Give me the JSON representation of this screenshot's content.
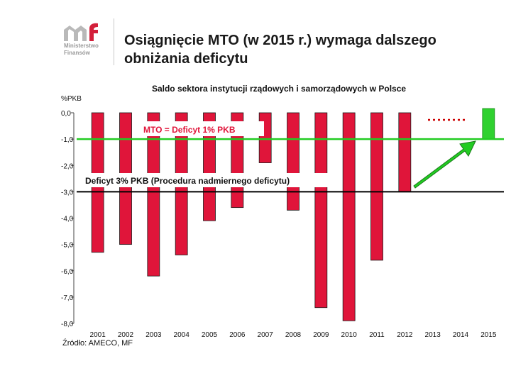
{
  "header": {
    "title_line1": "Osiągnięcie MTO (w 2015 r.) wymaga dalszego",
    "title_line2": "obniżania deficytu",
    "logo_line1": "Ministerstwo",
    "logo_line2": "Finansów",
    "logo_text": "mf"
  },
  "source": "Źródło: AMECO, MF",
  "colors": {
    "bar": "#e0153a",
    "bar_2015": "#2fd12f",
    "mto_line": "#22cc22",
    "deficit_line": "#000000",
    "arrow": "#22cc22",
    "dotted": "#cc0000"
  },
  "chart_data": {
    "type": "bar",
    "title": "Saldo sektora instytucji rządowych i samorządowych w Polsce",
    "ylabel": "%PKB",
    "ylim": [
      -8.0,
      0.0
    ],
    "yticks": [
      "0,0",
      "-1,0",
      "-2,0",
      "-3,0",
      "-4,0",
      "-5,0",
      "-6,0",
      "-7,0",
      "-8,0"
    ],
    "categories": [
      "2001",
      "2002",
      "2003",
      "2004",
      "2005",
      "2006",
      "2007",
      "2008",
      "2009",
      "2010",
      "2011",
      "2012",
      "2013",
      "2014",
      "2015"
    ],
    "values": [
      -5.3,
      -5.0,
      -6.2,
      -5.4,
      -4.1,
      -3.6,
      -1.9,
      -3.7,
      -7.4,
      -7.9,
      -5.6,
      -3.0,
      null,
      null,
      -1.0
    ],
    "reference_lines": [
      {
        "value": -1.0,
        "label": "MTO = Deficyt 1% PKB"
      },
      {
        "value": -3.0,
        "label": "Deficyt 3% PKB (Procedura nadmiernego deficytu)"
      }
    ],
    "grid": false
  }
}
